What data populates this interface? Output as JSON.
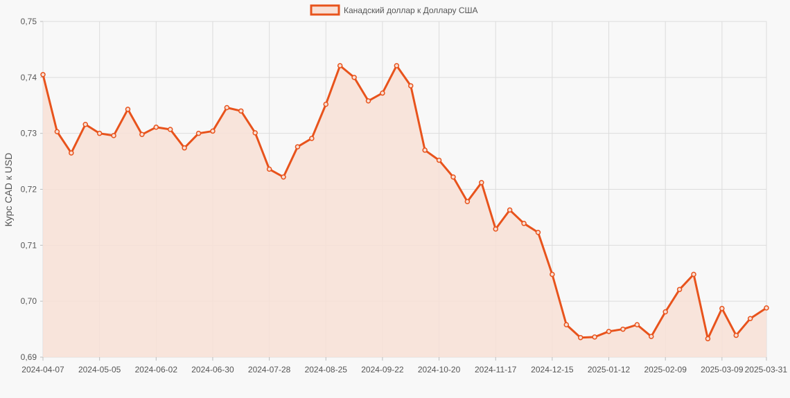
{
  "chart_data": {
    "type": "area",
    "ylabel": "Курс CAD к USD",
    "xlabel": "",
    "legend": {
      "position": "top-center"
    },
    "grid": true,
    "ylim": [
      0.69,
      0.75
    ],
    "y_ticks": [
      "0,69",
      "0,70",
      "0,71",
      "0,72",
      "0,73",
      "0,74",
      "0,75"
    ],
    "x_ticks": [
      "2024-04-07",
      "2024-05-05",
      "2024-06-02",
      "2024-06-30",
      "2024-07-28",
      "2024-08-25",
      "2024-09-22",
      "2024-10-20",
      "2024-11-17",
      "2024-12-15",
      "2025-01-12",
      "2025-02-09",
      "2025-03-09",
      "2025-03-31"
    ],
    "colors": {
      "line": "#e8531c",
      "fill": "#f8e0d6",
      "grid": "#dcdcdc",
      "background": "#f8f8f8"
    },
    "series": [
      {
        "name": "Канадский доллар к Доллару США",
        "x": [
          "2024-04-07",
          "2024-04-14",
          "2024-04-21",
          "2024-04-28",
          "2024-05-05",
          "2024-05-12",
          "2024-05-19",
          "2024-05-26",
          "2024-06-02",
          "2024-06-09",
          "2024-06-16",
          "2024-06-23",
          "2024-06-30",
          "2024-07-07",
          "2024-07-14",
          "2024-07-21",
          "2024-07-28",
          "2024-08-04",
          "2024-08-11",
          "2024-08-18",
          "2024-08-25",
          "2024-09-01",
          "2024-09-08",
          "2024-09-15",
          "2024-09-22",
          "2024-09-29",
          "2024-10-06",
          "2024-10-13",
          "2024-10-20",
          "2024-10-27",
          "2024-11-03",
          "2024-11-10",
          "2024-11-17",
          "2024-11-24",
          "2024-12-01",
          "2024-12-08",
          "2024-12-15",
          "2024-12-22",
          "2024-12-29",
          "2025-01-05",
          "2025-01-12",
          "2025-01-19",
          "2025-01-26",
          "2025-02-02",
          "2025-02-09",
          "2025-02-16",
          "2025-02-23",
          "2025-03-02",
          "2025-03-09",
          "2025-03-16",
          "2025-03-23",
          "2025-03-31"
        ],
        "values": [
          0.7405,
          0.7303,
          0.7265,
          0.7316,
          0.73,
          0.7296,
          0.7343,
          0.7298,
          0.7311,
          0.7307,
          0.7274,
          0.73,
          0.7304,
          0.7346,
          0.734,
          0.7301,
          0.7236,
          0.7222,
          0.7276,
          0.7291,
          0.7352,
          0.7421,
          0.74,
          0.7358,
          0.7372,
          0.7421,
          0.7385,
          0.727,
          0.7252,
          0.7222,
          0.7178,
          0.7212,
          0.7129,
          0.7163,
          0.7139,
          0.7123,
          0.7048,
          0.6958,
          0.6935,
          0.6936,
          0.6946,
          0.695,
          0.6958,
          0.6937,
          0.6981,
          0.7021,
          0.7048,
          0.6933,
          0.6987,
          0.6939,
          0.6969,
          0.6988
        ]
      }
    ]
  }
}
